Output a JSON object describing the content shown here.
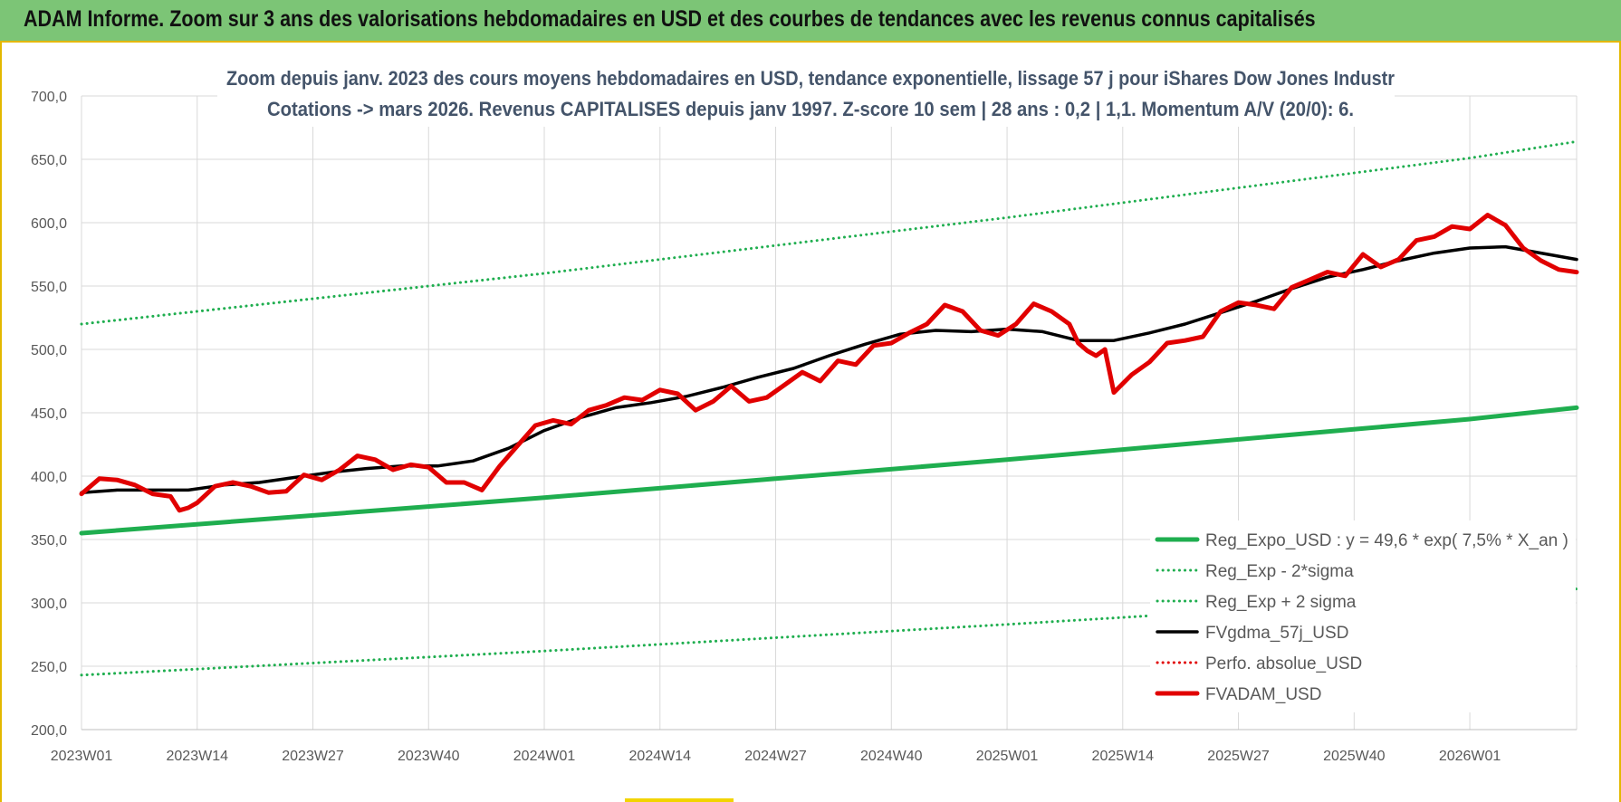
{
  "header": {
    "title": "ADAM Informe. Zoom sur 3 ans des valorisations hebdomadaires en USD et des courbes de tendances avec les revenus connus capitalisés"
  },
  "colors": {
    "header_bg": "#7cc576",
    "frame": "#e3b800",
    "trend": "#1fae4f",
    "smooth": "#000000",
    "fvadam": "#e10000",
    "grid": "#d9d9d9"
  },
  "chart_data": {
    "type": "line",
    "title": "Zoom depuis janv. 2023 des cours moyens hebdomadaires en USD, tendance exponentielle, lissage 57 j pour iShares Dow Jones Industr",
    "subtitle": "Cotations -> mars 2026. Revenus CAPITALISES depuis janv 1997. Z-score 10 sem | 28 ans : 0,2 | 1,1. Momentum A/V (20/0): 6.",
    "xlabel": "",
    "ylabel": "",
    "ylim": [
      200,
      700
    ],
    "y_ticks": [
      "700,0",
      "650,0",
      "600,0",
      "550,0",
      "500,0",
      "450,0",
      "400,0",
      "350,0",
      "300,0",
      "250,0",
      "200,0"
    ],
    "x_tick_labels": [
      "2023W01",
      "2023W14",
      "2023W27",
      "2023W40",
      "2024W01",
      "2024W14",
      "2024W27",
      "2024W40",
      "2025W01",
      "2025W14",
      "2025W27",
      "2025W40",
      "2026W01"
    ],
    "x_range_weeks": [
      0,
      168
    ],
    "grid": true,
    "legend_placement": "bottom-right",
    "series": [
      {
        "name": "Reg_Expo_USD : y = 49,6 * exp( 7,5% * X_an )",
        "style": "solid-thick",
        "color": "#1fae4f",
        "x": [
          0,
          52,
          104,
          156,
          168
        ],
        "y": [
          355,
          383,
          413,
          445,
          454
        ]
      },
      {
        "name": "Reg_Exp - 2*sigma",
        "style": "dotted",
        "color": "#1fae4f",
        "x": [
          0,
          52,
          104,
          156,
          168
        ],
        "y": [
          243,
          262,
          283,
          305,
          311
        ]
      },
      {
        "name": "Reg_Exp + 2 sigma",
        "style": "dotted",
        "color": "#1fae4f",
        "x": [
          0,
          52,
          104,
          156,
          168
        ],
        "y": [
          520,
          560,
          604,
          651,
          664
        ]
      },
      {
        "name": "FVgdma_57j_USD",
        "style": "solid",
        "color": "#000000",
        "x": [
          0,
          4,
          8,
          12,
          16,
          20,
          24,
          28,
          32,
          36,
          40,
          44,
          48,
          52,
          56,
          60,
          64,
          68,
          72,
          76,
          80,
          84,
          88,
          92,
          96,
          100,
          104,
          108,
          112,
          116,
          120,
          124,
          128,
          132,
          136,
          140,
          144,
          148,
          152,
          156,
          160,
          164,
          168
        ],
        "y": [
          387,
          389,
          389,
          389,
          393,
          395,
          399,
          403,
          406,
          408,
          408,
          412,
          422,
          436,
          446,
          454,
          458,
          463,
          470,
          478,
          485,
          495,
          504,
          512,
          515,
          514,
          516,
          514,
          507,
          507,
          513,
          520,
          529,
          538,
          548,
          557,
          563,
          570,
          576,
          580,
          581,
          576,
          571
        ]
      },
      {
        "name": "Perfo. absolue_USD",
        "style": "dotted",
        "color": "#e10000",
        "x": [],
        "y": []
      },
      {
        "name": "FVADAM_USD",
        "style": "solid-thick",
        "color": "#e10000",
        "x": [
          0,
          2,
          4,
          6,
          8,
          10,
          11,
          12,
          13,
          15,
          17,
          19,
          21,
          23,
          25,
          27,
          29,
          31,
          33,
          35,
          37,
          39,
          41,
          43,
          45,
          47,
          49,
          51,
          53,
          55,
          57,
          59,
          61,
          63,
          65,
          67,
          69,
          71,
          73,
          75,
          77,
          79,
          81,
          83,
          85,
          87,
          89,
          91,
          93,
          95,
          97,
          99,
          101,
          103,
          105,
          107,
          109,
          111,
          112,
          113,
          114,
          115,
          116,
          118,
          120,
          122,
          124,
          126,
          128,
          130,
          132,
          134,
          136,
          138,
          140,
          142,
          144,
          146,
          148,
          150,
          152,
          154,
          156,
          158,
          160,
          162,
          164,
          166,
          168
        ],
        "y": [
          386,
          398,
          397,
          393,
          386,
          384,
          373,
          375,
          379,
          392,
          395,
          392,
          387,
          388,
          401,
          397,
          405,
          416,
          413,
          405,
          409,
          407,
          395,
          395,
          389,
          408,
          424,
          440,
          444,
          441,
          452,
          456,
          462,
          460,
          468,
          465,
          452,
          459,
          471,
          459,
          462,
          472,
          482,
          475,
          491,
          488,
          503,
          505,
          513,
          520,
          535,
          530,
          515,
          511,
          520,
          536,
          530,
          520,
          505,
          499,
          495,
          500,
          466,
          480,
          490,
          505,
          507,
          510,
          530,
          537,
          535,
          532,
          549,
          555,
          561,
          558,
          575,
          565,
          571,
          586,
          589,
          597,
          595,
          606,
          598,
          580,
          570,
          563,
          561
        ]
      }
    ]
  }
}
